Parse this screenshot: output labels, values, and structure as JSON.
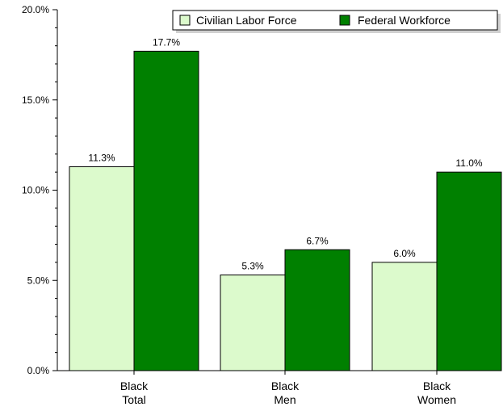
{
  "chart_data": {
    "type": "bar",
    "categories": [
      [
        "Black",
        "Total"
      ],
      [
        "Black",
        "Men"
      ],
      [
        "Black",
        "Women"
      ]
    ],
    "series": [
      {
        "name": "Civilian Labor Force",
        "values": [
          11.3,
          5.3,
          6.0
        ],
        "color": "#dcfacc"
      },
      {
        "name": "Federal Workforce",
        "values": [
          17.7,
          6.7,
          11.0
        ],
        "color": "#008000"
      }
    ],
    "data_labels": [
      [
        "11.3%",
        "5.3%",
        "6.0%"
      ],
      [
        "17.7%",
        "6.7%",
        "11.0%"
      ]
    ],
    "y_ticks": [
      0,
      5,
      10,
      15,
      20
    ],
    "y_tick_labels": [
      "0.0%",
      "5.0%",
      "10.0%",
      "15.0%",
      "20.0%"
    ],
    "ylim": [
      0,
      20
    ],
    "title": "",
    "xlabel": "",
    "ylabel": "",
    "legend_position": "top-right",
    "grid": false
  }
}
